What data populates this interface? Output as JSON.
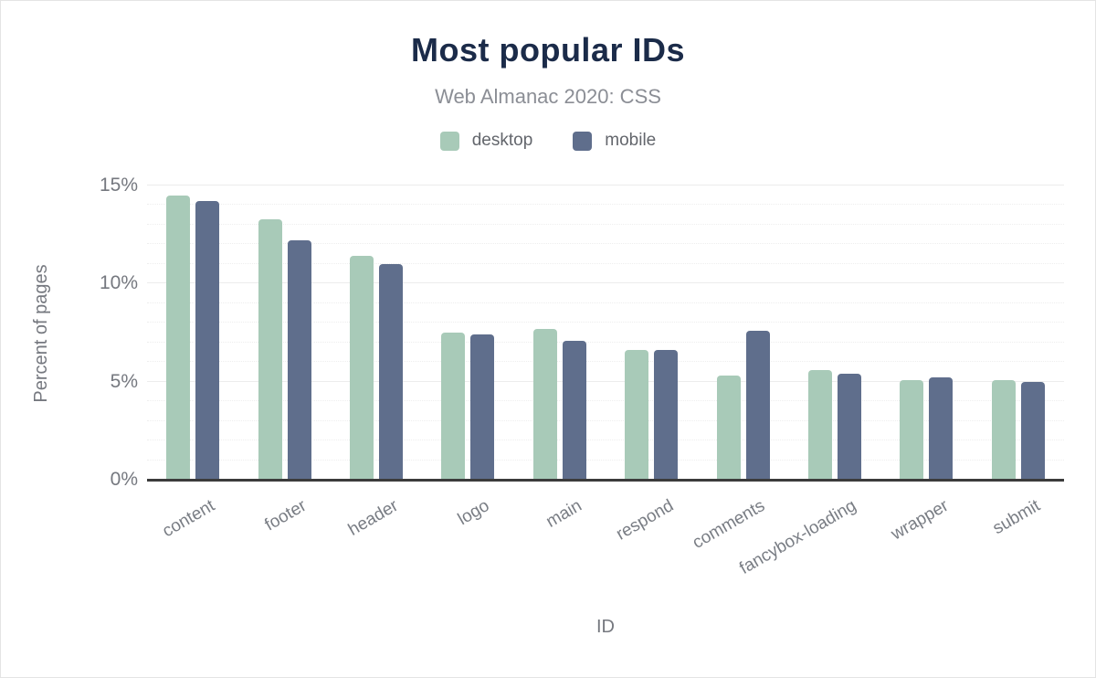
{
  "chart_data": {
    "type": "bar",
    "title": "Most popular IDs",
    "subtitle": "Web Almanac 2020: CSS",
    "xlabel": "ID",
    "ylabel": "Percent of pages",
    "ylim": [
      0,
      15
    ],
    "ytick_labels": [
      "0%",
      "5%",
      "10%",
      "15%"
    ],
    "ytick_values": [
      0,
      5,
      10,
      15
    ],
    "minor_grid_step": 1,
    "grid": "horizontal, dotted minor lines every 1%, light solid lines every 5%",
    "legend_position": "top center",
    "categories": [
      "content",
      "footer",
      "header",
      "logo",
      "main",
      "respond",
      "comments",
      "fancybox-loading",
      "wrapper",
      "submit"
    ],
    "series": [
      {
        "name": "desktop",
        "color": "#a8cab8",
        "values": [
          14.5,
          13.3,
          11.4,
          7.5,
          7.7,
          6.6,
          5.3,
          5.6,
          5.1,
          5.1
        ]
      },
      {
        "name": "mobile",
        "color": "#5f6e8c",
        "values": [
          14.2,
          12.2,
          11.0,
          7.4,
          7.1,
          6.6,
          7.6,
          5.4,
          5.2,
          5.0
        ]
      }
    ]
  },
  "colors": {
    "title": "#1b2b49",
    "subtitle": "#8b8e95",
    "axis_text": "#75787f",
    "axis_line": "#3b3b3b",
    "desktop": "#a8cab8",
    "mobile": "#5f6e8c"
  }
}
